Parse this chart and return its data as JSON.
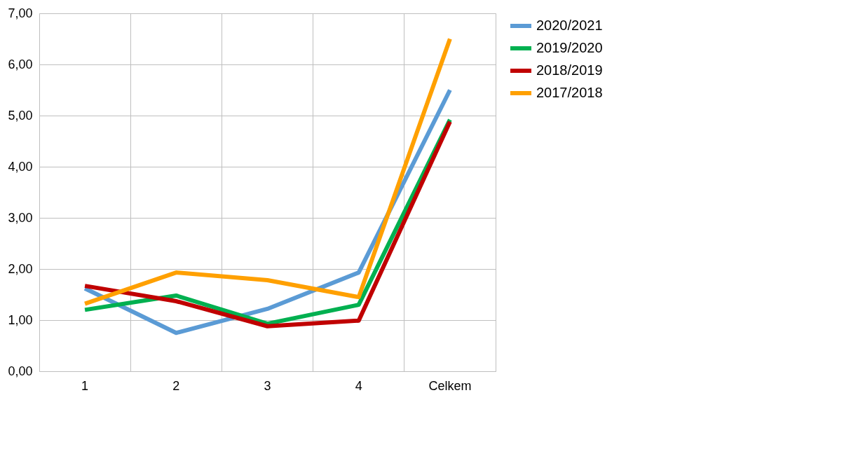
{
  "chart_data": {
    "type": "line",
    "categories": [
      "1",
      "2",
      "3",
      "4",
      "Celkem"
    ],
    "series": [
      {
        "name": "2020/2021",
        "color": "#5b9bd5",
        "values": [
          1.62,
          0.75,
          1.22,
          1.93,
          5.5
        ]
      },
      {
        "name": "2019/2020",
        "color": "#00b050",
        "values": [
          1.2,
          1.48,
          0.93,
          1.3,
          4.92
        ]
      },
      {
        "name": "2018/2019",
        "color": "#c00000",
        "values": [
          1.67,
          1.37,
          0.88,
          0.99,
          4.88
        ]
      },
      {
        "name": "2017/2018",
        "color": "#ffa000",
        "values": [
          1.32,
          1.93,
          1.78,
          1.45,
          6.5
        ]
      }
    ],
    "ylim": [
      0,
      7
    ],
    "yticks": [
      {
        "value": 0,
        "label": "0,00"
      },
      {
        "value": 1,
        "label": "1,00"
      },
      {
        "value": 2,
        "label": "2,00"
      },
      {
        "value": 3,
        "label": "3,00"
      },
      {
        "value": 4,
        "label": "4,00"
      },
      {
        "value": 5,
        "label": "5,00"
      },
      {
        "value": 6,
        "label": "6,00"
      },
      {
        "value": 7,
        "label": "7,00"
      }
    ],
    "grid": true,
    "legend": "right",
    "marker": "none",
    "line_style": "solid"
  }
}
